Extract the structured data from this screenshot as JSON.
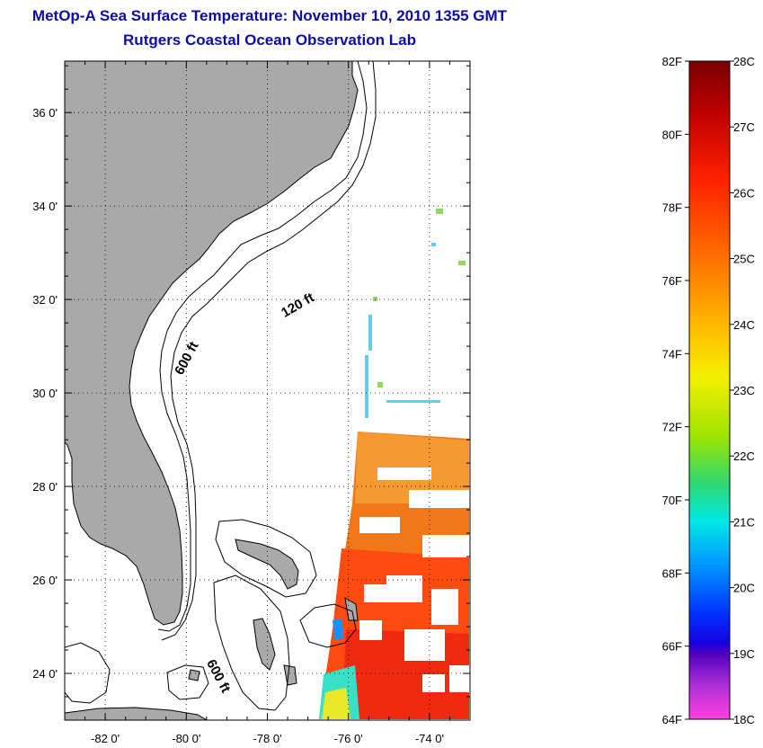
{
  "header": {
    "title": "MetOp-A Sea Surface Temperature:  November 10, 2010 1355 GMT",
    "subtitle": "Rutgers Coastal Ocean Observation Lab"
  },
  "map": {
    "lat_range": [
      23.0,
      37.1
    ],
    "lon_range": [
      -83.0,
      -73.0
    ],
    "lat_ticks": [
      {
        "value": 36,
        "label": "36 0'"
      },
      {
        "value": 34,
        "label": "34 0'"
      },
      {
        "value": 32,
        "label": "32 0'"
      },
      {
        "value": 30,
        "label": "30 0'"
      },
      {
        "value": 28,
        "label": "28 0'"
      },
      {
        "value": 26,
        "label": "26 0'"
      },
      {
        "value": 24,
        "label": "24 0'"
      }
    ],
    "lon_ticks": [
      {
        "value": -82,
        "label": "-82 0'"
      },
      {
        "value": -80,
        "label": "-80 0'"
      },
      {
        "value": -78,
        "label": "-78 0'"
      },
      {
        "value": -76,
        "label": "-76 0'"
      },
      {
        "value": -74,
        "label": "-74 0'"
      }
    ],
    "land_color": "#a9a9a9",
    "ocean_color": "#ffffff",
    "depth_labels": [
      {
        "text": "120 ft",
        "lat": 31.8,
        "lon": -77.2
      },
      {
        "text": "600 ft",
        "lat": 30.7,
        "lon": -79.9
      },
      {
        "text": "600 ft",
        "lat": 23.9,
        "lon": -79.3
      }
    ]
  },
  "colorbar": {
    "f_labels": [
      "82F",
      "80F",
      "78F",
      "76F",
      "74F",
      "72F",
      "70F",
      "68F",
      "66F",
      "64F"
    ],
    "c_labels": [
      "28C",
      "27C",
      "26C",
      "25C",
      "24C",
      "23C",
      "22C",
      "21C",
      "20C",
      "19C",
      "18C"
    ],
    "colors": [
      "#800000",
      "#cc0000",
      "#ff2a00",
      "#ff7a00",
      "#ffc000",
      "#f8f000",
      "#a8e800",
      "#3ed860",
      "#00e0e0",
      "#00a0ff",
      "#0040ff",
      "#3000c0",
      "#8020c8",
      "#ff40d8"
    ]
  }
}
